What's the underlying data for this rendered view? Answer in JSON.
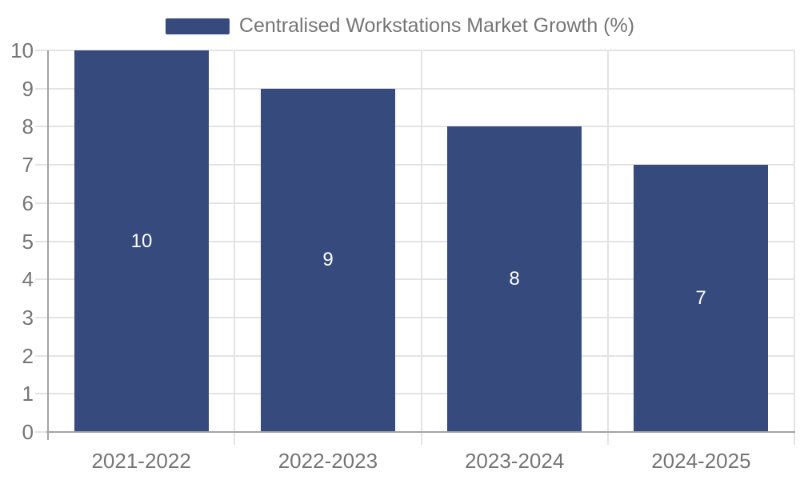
{
  "chart_data": {
    "type": "bar",
    "title": "Centralised Workstations Market Growth (%)",
    "legend": [
      "Centralised Workstations Market Growth (%)"
    ],
    "legend_position": "top",
    "categories": [
      "2021-2022",
      "2022-2023",
      "2023-2024",
      "2024-2025"
    ],
    "values": [
      10,
      9,
      8,
      7
    ],
    "value_labels": [
      "10",
      "9",
      "8",
      "7"
    ],
    "xlabel": "",
    "ylabel": "",
    "ylim": [
      0,
      10
    ],
    "ytick_step": 1,
    "ytick_labels": [
      "0",
      "1",
      "2",
      "3",
      "4",
      "5",
      "6",
      "7",
      "8",
      "9",
      "10"
    ],
    "grid": true,
    "colors": {
      "bar": "#364a7e",
      "grid": "#e3e3e3",
      "axis": "#a3a3a8",
      "tick_label": "#757575",
      "value_label": "#ffffff",
      "background": "#ffffff"
    }
  }
}
